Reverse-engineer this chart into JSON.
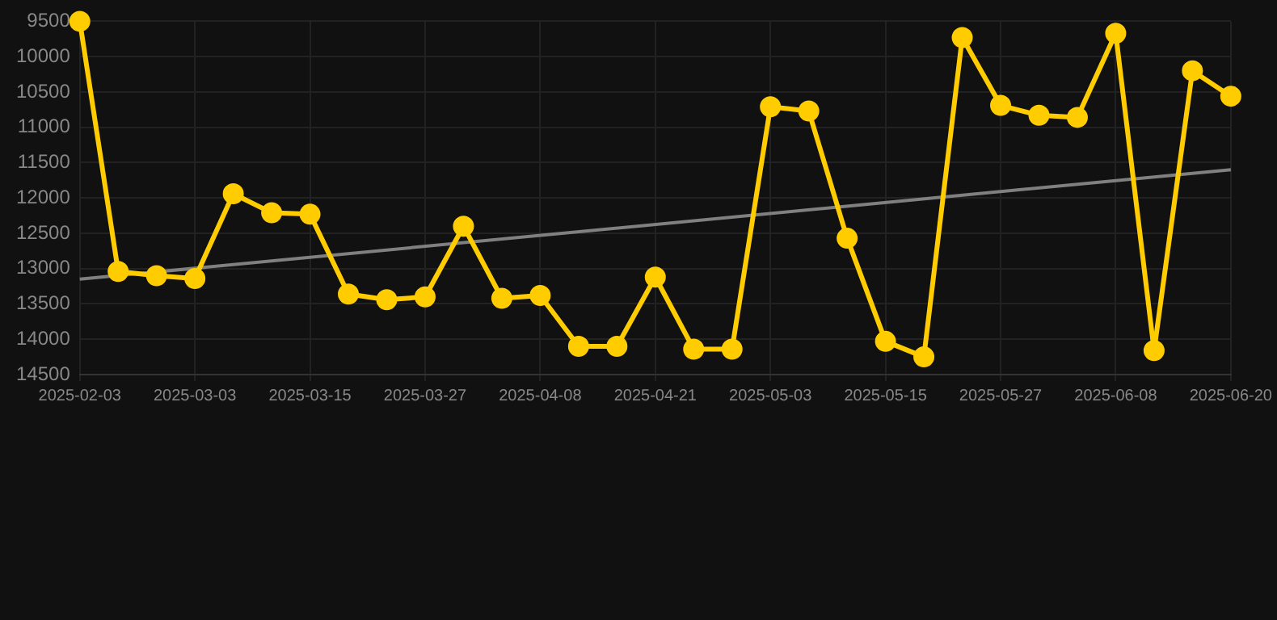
{
  "chart_data": {
    "type": "line",
    "categories": [
      "2025-02-03",
      null,
      null,
      "2025-03-03",
      null,
      null,
      "2025-03-15",
      null,
      null,
      "2025-03-27",
      null,
      null,
      "2025-04-08",
      null,
      null,
      "2025-04-21",
      null,
      null,
      "2025-05-03",
      null,
      null,
      "2025-05-15",
      null,
      null,
      "2025-05-27",
      null,
      null,
      "2025-06-08",
      null,
      null,
      "2025-06-20"
    ],
    "series": [
      {
        "color": "#ffcc00",
        "marker": "circle",
        "values": [
          9500,
          13040,
          13100,
          13140,
          11940,
          12210,
          12230,
          13360,
          13440,
          13400,
          12400,
          13420,
          13380,
          14100,
          14100,
          13120,
          14140,
          14140,
          10710,
          10770,
          12570,
          14030,
          14250,
          9730,
          10690,
          10830,
          10860,
          9670,
          14160,
          10200,
          10560
        ]
      },
      {
        "type": "line",
        "color": "#808080",
        "marker": "none",
        "values": [
          13150,
          null,
          null,
          null,
          null,
          null,
          null,
          null,
          null,
          null,
          null,
          null,
          null,
          null,
          null,
          null,
          null,
          null,
          null,
          null,
          null,
          null,
          null,
          null,
          null,
          null,
          null,
          null,
          null,
          null,
          11600
        ]
      }
    ],
    "ylim": [
      14500,
      9500
    ],
    "yticks": [
      9500,
      10000,
      10500,
      11000,
      11500,
      12000,
      12500,
      13000,
      13500,
      14000,
      14500
    ],
    "grid": true
  }
}
